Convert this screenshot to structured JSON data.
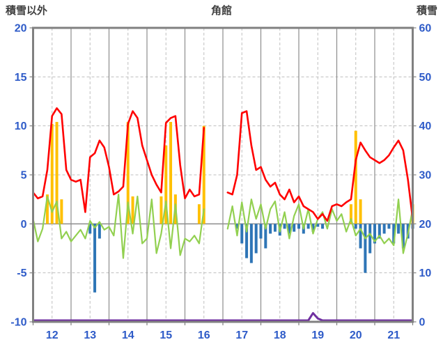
{
  "header": {
    "left_label": "積雪以外",
    "title": "角館",
    "right_label": "積雪"
  },
  "chart_data": {
    "type": "line",
    "title": "角館",
    "left_axis": {
      "label": "積雪以外",
      "min": -10,
      "max": 20,
      "ticks": [
        20,
        15,
        10,
        5,
        0,
        -5,
        -10
      ]
    },
    "right_axis": {
      "label": "積雪",
      "min": 0,
      "max": 60,
      "ticks": [
        60,
        50,
        40,
        30,
        20,
        10,
        0
      ]
    },
    "x_axis": {
      "min": 11.5,
      "max": 21.5,
      "labels": [
        "12",
        "13",
        "14",
        "15",
        "16",
        "17",
        "18",
        "19",
        "20",
        "21"
      ]
    },
    "x_start": 11.5,
    "x_step": 0.125,
    "grid": "on",
    "legend": "none",
    "series": [
      {
        "name": "orange-bars",
        "type": "bar",
        "axis": "left",
        "color": "#FFC000",
        "values": [
          0,
          0,
          0,
          3,
          10.2,
          10.4,
          2.5,
          0,
          0,
          0,
          0,
          0,
          0,
          0,
          0,
          0,
          0,
          0,
          0,
          0,
          10.4,
          2.8,
          0,
          0,
          0,
          0,
          0,
          2.8,
          8,
          10.4,
          3,
          0,
          0,
          0,
          0,
          2,
          10,
          0,
          0,
          0,
          0,
          0,
          0,
          0,
          0,
          0,
          0,
          0,
          0,
          0,
          0,
          0,
          0,
          0,
          0,
          0,
          0,
          0,
          0,
          0,
          0,
          0,
          0,
          0,
          0,
          0,
          0,
          2,
          9.5,
          2.5,
          0,
          0,
          0,
          0,
          0,
          0,
          0,
          0,
          0,
          0,
          2
        ]
      },
      {
        "name": "blue-bars",
        "type": "bar",
        "axis": "left",
        "color": "#2E75B6",
        "values": [
          0,
          0,
          0,
          0,
          0,
          0,
          0,
          0,
          0,
          0,
          0,
          0,
          -1,
          -7,
          -1.5,
          0,
          0,
          0,
          0,
          0,
          0,
          0,
          0,
          0,
          0,
          0,
          0,
          0,
          0,
          0,
          0,
          0,
          0,
          0,
          0,
          0,
          0,
          0,
          0,
          0,
          0,
          0,
          0,
          -0.5,
          -2,
          -3.5,
          -4,
          -3,
          -1.5,
          -2.5,
          -1,
          -0.8,
          -1.2,
          -0.5,
          -1,
          -0.8,
          -0.5,
          -1,
          -0.5,
          -0.8,
          -0.3,
          -0.5,
          0,
          0,
          0,
          0,
          0,
          0,
          -0.5,
          -2.5,
          -5,
          -3,
          -2,
          -1.5,
          -1,
          -0.5,
          -2,
          -1,
          -2.5,
          -1.5,
          -0.5
        ]
      },
      {
        "name": "green-line",
        "type": "line",
        "axis": "left",
        "color": "#92D050",
        "width": 2.2,
        "values": [
          0.5,
          -1.8,
          -0.5,
          2.8,
          1.2,
          2.3,
          -1.5,
          -0.8,
          -1.8,
          -1.2,
          -0.6,
          -1.5,
          0.3,
          -0.4,
          0.2,
          -0.6,
          -0.3,
          -1.2,
          3,
          -3.5,
          2.2,
          -1,
          2.8,
          -2,
          -1.5,
          2.5,
          -3,
          -1,
          2.3,
          -2.5,
          2,
          -3.2,
          -1.5,
          -1.8,
          -1.2,
          -2,
          1.5,
          null,
          null,
          null,
          null,
          -0.5,
          1.8,
          -1.2,
          2.2,
          -0.8,
          2.5,
          0.5,
          2,
          -0.5,
          1.5,
          2.3,
          -0.8,
          1.2,
          -1.5,
          0.8,
          2,
          -0.5,
          1.5,
          -1,
          0.5,
          1.2,
          -0.5,
          1.5,
          0.3,
          1,
          -0.8,
          0.5,
          -1.2,
          -0.5,
          -1.5,
          -1,
          -1.8,
          -1.2,
          -2,
          -1.5,
          -2.2,
          2.5,
          -3,
          -1,
          1.5
        ]
      },
      {
        "name": "red-line",
        "type": "line",
        "axis": "left",
        "color": "#FF0000",
        "width": 2.6,
        "values": [
          3.2,
          2.6,
          2.8,
          5.5,
          11,
          11.8,
          11.2,
          5.5,
          4.5,
          4.3,
          4.5,
          1.2,
          6.8,
          7.2,
          8.5,
          7.8,
          5.8,
          3,
          3.3,
          3.8,
          10.2,
          11.5,
          10.8,
          8,
          6.5,
          5,
          4,
          3.2,
          10.3,
          10.8,
          11,
          6,
          2.6,
          3.5,
          2.8,
          3,
          9.8,
          null,
          null,
          null,
          null,
          3.2,
          3,
          5,
          11.3,
          11.5,
          8,
          5.5,
          5.8,
          4.5,
          3.8,
          4.2,
          3,
          2.5,
          3.5,
          2.2,
          2.8,
          1.8,
          1.5,
          1.2,
          0.5,
          1,
          0.3,
          1.8,
          2,
          1.8,
          2.2,
          2.5,
          6.5,
          8.3,
          7.5,
          6.8,
          6.5,
          6.2,
          6.5,
          7,
          7.8,
          8.5,
          7.5,
          4.5,
          0.5
        ]
      },
      {
        "name": "purple-line",
        "type": "line",
        "axis": "right",
        "color": "#7030A0",
        "width": 3,
        "values": [
          0,
          0,
          0,
          0,
          0,
          0,
          0,
          0,
          0,
          0,
          0,
          0,
          0,
          0,
          0,
          0,
          0,
          0,
          0,
          0,
          0,
          0,
          0,
          0,
          0,
          0,
          0,
          0,
          0,
          0,
          0,
          0,
          0,
          0,
          0,
          0,
          0,
          0,
          0,
          0,
          0,
          0,
          0,
          0,
          0,
          0,
          0,
          0,
          0,
          0,
          0,
          0,
          0,
          0,
          0,
          0,
          0,
          0,
          0,
          1.5,
          0.4,
          0,
          0,
          0,
          0,
          0,
          0,
          0,
          0,
          0,
          0,
          0,
          0,
          0,
          0,
          0,
          0,
          0,
          0,
          0,
          0
        ]
      }
    ],
    "colors": {
      "axis_text": "#2E5BC8",
      "title_text": "#404040",
      "grid_solid": "#8C8C8C",
      "grid_dashed": "#BFBFBF",
      "frame": "#808080"
    }
  }
}
